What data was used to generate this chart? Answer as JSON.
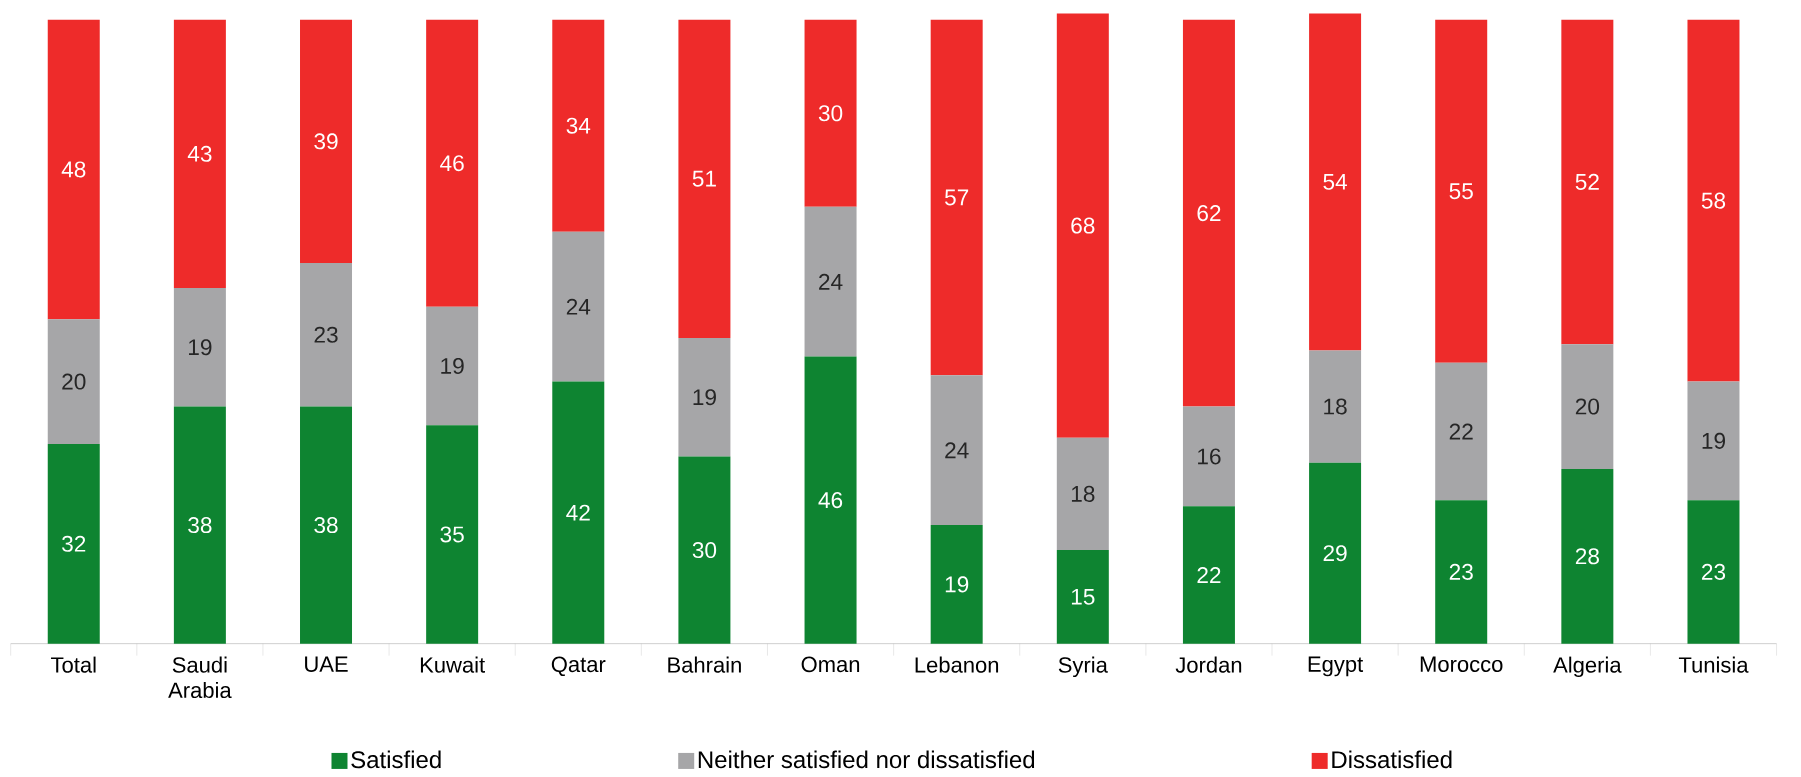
{
  "chart_data": {
    "type": "bar",
    "stacked": true,
    "data_labels": true,
    "legend": "bottom",
    "categories": [
      "Total",
      "Saudi Arabia",
      "UAE",
      "Kuwait",
      "Qatar",
      "Bahrain",
      "Oman",
      "Lebanon",
      "Syria",
      "Jordan",
      "Egypt",
      "Morocco",
      "Algeria",
      "Tunisia"
    ],
    "series": [
      {
        "name": "Satisfied",
        "color": "#0e8431",
        "values": [
          32,
          38,
          38,
          35,
          42,
          30,
          46,
          19,
          15,
          22,
          29,
          23,
          28,
          23
        ]
      },
      {
        "name": "Neither satisfied nor dissatisfied",
        "color": "#a6a6a8",
        "values": [
          20,
          19,
          23,
          19,
          24,
          19,
          24,
          24,
          18,
          16,
          18,
          22,
          20,
          19
        ]
      },
      {
        "name": "Dissatisfied",
        "color": "#ee2b2a",
        "values": [
          48,
          43,
          39,
          46,
          34,
          51,
          30,
          57,
          68,
          62,
          54,
          55,
          52,
          58
        ]
      }
    ]
  }
}
